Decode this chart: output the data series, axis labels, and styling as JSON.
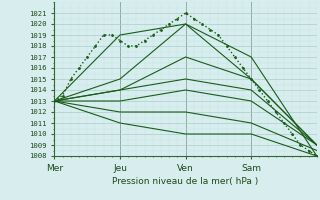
{
  "bg_color": "#d8eeee",
  "grid_major_color": "#aacccc",
  "grid_minor_color": "#c4e0e0",
  "line_color": "#1a5c1a",
  "xlabel": "Pression niveau de la mer( hPa )",
  "ylim": [
    1008,
    1022
  ],
  "yticks": [
    1008,
    1009,
    1010,
    1011,
    1012,
    1013,
    1014,
    1015,
    1016,
    1017,
    1018,
    1019,
    1020,
    1021
  ],
  "xtick_labels": [
    "Mer",
    "Jeu",
    "Ven",
    "Sam"
  ],
  "xtick_positions": [
    0,
    48,
    96,
    144
  ],
  "xmax": 192,
  "vlines": [
    0,
    48,
    96,
    144
  ],
  "lines": [
    {
      "x": [
        0,
        6,
        12,
        18,
        24,
        30,
        36,
        42,
        48,
        54,
        60,
        66,
        72,
        78,
        84,
        90,
        96,
        102,
        108,
        114,
        120,
        126,
        132,
        138,
        144,
        150,
        156,
        162,
        168,
        174,
        180,
        186,
        192
      ],
      "y": [
        1013,
        1013.5,
        1015,
        1016,
        1017,
        1018,
        1019,
        1019,
        1018.5,
        1018,
        1018,
        1018.5,
        1019,
        1019.5,
        1020,
        1020.5,
        1021,
        1020.5,
        1020,
        1019.5,
        1019,
        1018,
        1017,
        1016,
        1015,
        1014,
        1013,
        1012,
        1011,
        1010,
        1009,
        1008.5,
        1008
      ],
      "style": "dotted",
      "marker": ".",
      "lw": 1.0,
      "ms": 2.0
    },
    {
      "x": [
        0,
        48,
        96,
        144,
        192
      ],
      "y": [
        1013,
        1019,
        1020,
        1017,
        1008
      ],
      "style": "solid",
      "lw": 0.8
    },
    {
      "x": [
        0,
        48,
        96,
        144,
        192
      ],
      "y": [
        1013,
        1015,
        1020,
        1015,
        1009
      ],
      "style": "solid",
      "lw": 0.8
    },
    {
      "x": [
        0,
        48,
        96,
        144,
        192
      ],
      "y": [
        1013,
        1014,
        1017,
        1015,
        1009
      ],
      "style": "solid",
      "lw": 0.8
    },
    {
      "x": [
        0,
        48,
        96,
        144,
        192
      ],
      "y": [
        1013,
        1014,
        1015,
        1014,
        1009
      ],
      "style": "solid",
      "lw": 0.8
    },
    {
      "x": [
        0,
        48,
        96,
        144,
        192
      ],
      "y": [
        1013,
        1013,
        1014,
        1013,
        1009
      ],
      "style": "solid",
      "lw": 0.8
    },
    {
      "x": [
        0,
        48,
        96,
        144,
        192
      ],
      "y": [
        1013,
        1012,
        1012,
        1011,
        1008.5
      ],
      "style": "solid",
      "lw": 0.8
    },
    {
      "x": [
        0,
        48,
        96,
        144,
        192
      ],
      "y": [
        1013,
        1011,
        1010,
        1010,
        1008
      ],
      "style": "solid",
      "lw": 0.8
    }
  ]
}
